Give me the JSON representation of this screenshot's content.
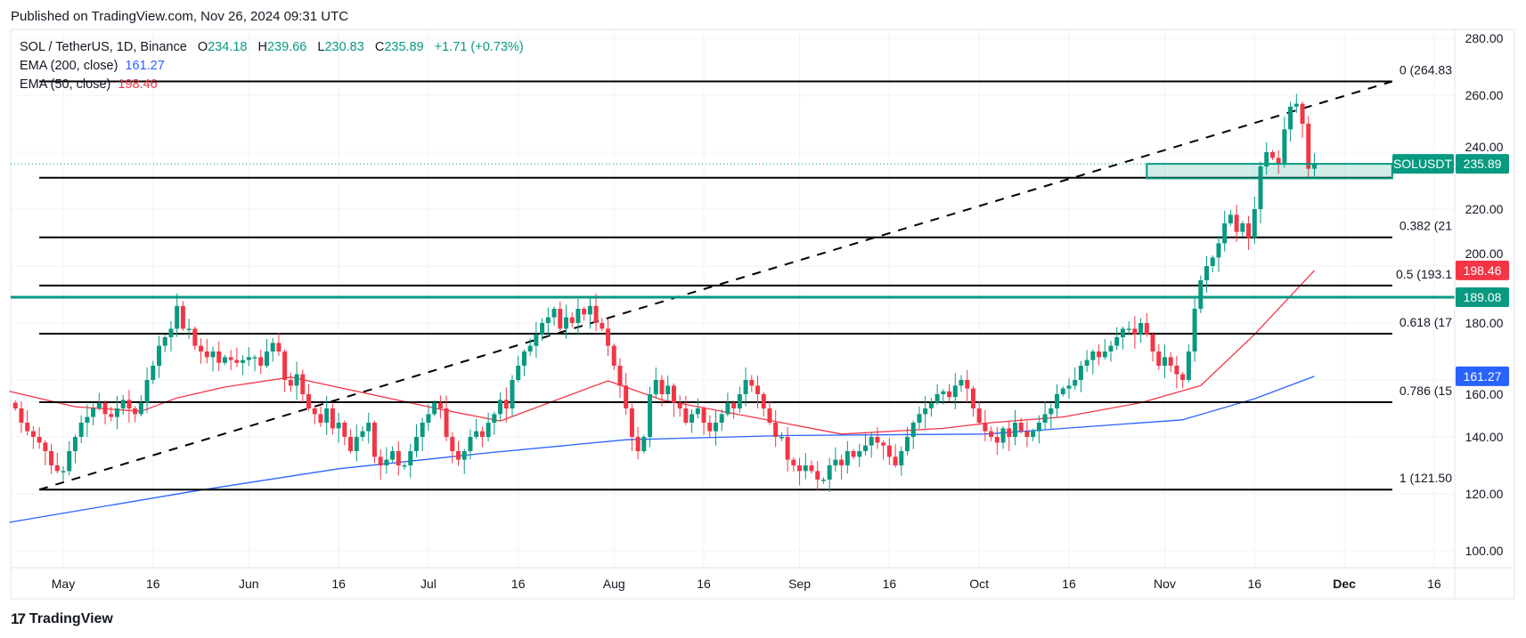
{
  "header": {
    "published": "Published on TradingView.com, Nov 26, 2024 09:31 UTC"
  },
  "legend": {
    "symbol": "SOL / TetherUS, 1D, Binance",
    "open_label": "O",
    "open": "234.18",
    "high_label": "H",
    "high": "239.66",
    "low_label": "L",
    "low": "230.83",
    "close_label": "C",
    "close": "235.89",
    "change": "+1.71 (+0.73%)",
    "ema200_label": "EMA (200, close)",
    "ema200_value": "161.27",
    "ema50_label": "EMA (50, close)",
    "ema50_value": "198.46"
  },
  "footer": {
    "logo_text": "TradingView"
  },
  "colors": {
    "up": "#089981",
    "down": "#f23645",
    "ema200": "#2962ff",
    "ema50": "#f23645",
    "fib": "#000000",
    "support": "#089981"
  },
  "chart_data": {
    "type": "candlestick",
    "interval": "1D",
    "x_start": "2024-04-23",
    "ylim": [
      95,
      285
    ],
    "y_ticks": [
      "100.00",
      "120.00",
      "140.00",
      "160.00",
      "180.00",
      "200.00",
      "220.00",
      "240.00",
      "260.00",
      "280.00"
    ],
    "y_tick_values": [
      100,
      120,
      140,
      160,
      180,
      200,
      220,
      240,
      260,
      280
    ],
    "x_ticks": [
      {
        "label": "May",
        "date": "2024-05-01",
        "bold": false
      },
      {
        "label": "16",
        "date": "2024-05-16"
      },
      {
        "label": "Jun",
        "date": "2024-06-01"
      },
      {
        "label": "16",
        "date": "2024-06-16"
      },
      {
        "label": "Jul",
        "date": "2024-07-01"
      },
      {
        "label": "16",
        "date": "2024-07-16"
      },
      {
        "label": "Aug",
        "date": "2024-08-01"
      },
      {
        "label": "16",
        "date": "2024-08-16"
      },
      {
        "label": "Sep",
        "date": "2024-09-01"
      },
      {
        "label": "16",
        "date": "2024-09-16"
      },
      {
        "label": "Oct",
        "date": "2024-10-01"
      },
      {
        "label": "16",
        "date": "2024-10-16"
      },
      {
        "label": "Nov",
        "date": "2024-11-01"
      },
      {
        "label": "16",
        "date": "2024-11-16"
      },
      {
        "label": "Dec",
        "date": "2024-12-01",
        "bold": true
      },
      {
        "label": "16",
        "date": "2024-12-16"
      }
    ],
    "grid": true,
    "closes": [
      150,
      145,
      142,
      140,
      138,
      135,
      130,
      128,
      128,
      135,
      140,
      145,
      147,
      150,
      152,
      148,
      147,
      150,
      153,
      150,
      148,
      152,
      160,
      165,
      172,
      175,
      178,
      186,
      178,
      178,
      172,
      170,
      168,
      170,
      166,
      168,
      167,
      166,
      167,
      168,
      168,
      165,
      170,
      173,
      170,
      160,
      158,
      162,
      155,
      150,
      148,
      145,
      150,
      143,
      145,
      140,
      135,
      140,
      142,
      145,
      133,
      130,
      132,
      135,
      130,
      130,
      135,
      140,
      145,
      148,
      152,
      150,
      140,
      135,
      132,
      135,
      140,
      142,
      140,
      145,
      148,
      153,
      150,
      160,
      165,
      170,
      172,
      176,
      180,
      182,
      185,
      178,
      182,
      180,
      185,
      183,
      186,
      180,
      178,
      172,
      165,
      158,
      150,
      140,
      135,
      140,
      155,
      160,
      155,
      158,
      152,
      150,
      145,
      148,
      150,
      145,
      142,
      145,
      148,
      152,
      150,
      155,
      160,
      158,
      155,
      150,
      145,
      140,
      140,
      132,
      130,
      128,
      130,
      128,
      125,
      125,
      130,
      132,
      130,
      135,
      133,
      135,
      137,
      140,
      138,
      137,
      133,
      130,
      135,
      140,
      145,
      148,
      150,
      152,
      155,
      156,
      154,
      158,
      160,
      157,
      150,
      145,
      142,
      140,
      138,
      143,
      140,
      145,
      142,
      140,
      142,
      145,
      148,
      150,
      155,
      157,
      158,
      160,
      165,
      167,
      170,
      168,
      170,
      172,
      175,
      178,
      178,
      176,
      180,
      176,
      170,
      165,
      168,
      165,
      162,
      160,
      170,
      185,
      195,
      200,
      203,
      208,
      215,
      218,
      212,
      215,
      210,
      220,
      235,
      240,
      238,
      236,
      248,
      256,
      257,
      250,
      234.18,
      235.89
    ],
    "last_candle": {
      "open": 234.18,
      "high": 239.66,
      "low": 230.83,
      "close": 235.89
    },
    "ema200": [
      {
        "date": "2024-04-22",
        "value": 110
      },
      {
        "date": "2024-05-23",
        "value": 121
      },
      {
        "date": "2024-06-16",
        "value": 128.8
      },
      {
        "date": "2024-07-11",
        "value": 134.4
      },
      {
        "date": "2024-08-03",
        "value": 139
      },
      {
        "date": "2024-08-30",
        "value": 140.5
      },
      {
        "date": "2024-10-02",
        "value": 141
      },
      {
        "date": "2024-11-04",
        "value": 146
      },
      {
        "date": "2024-11-16",
        "value": 153.4
      },
      {
        "date": "2024-11-26",
        "value": 161.27
      }
    ],
    "ema50": [
      {
        "date": "2024-04-22",
        "value": 156
      },
      {
        "date": "2024-05-03",
        "value": 150.6
      },
      {
        "date": "2024-05-14",
        "value": 149
      },
      {
        "date": "2024-05-20",
        "value": 153.7
      },
      {
        "date": "2024-05-28",
        "value": 157.5
      },
      {
        "date": "2024-06-08",
        "value": 161
      },
      {
        "date": "2024-07-03",
        "value": 149.7
      },
      {
        "date": "2024-07-13",
        "value": 145.6
      },
      {
        "date": "2024-07-31",
        "value": 159.7
      },
      {
        "date": "2024-08-09",
        "value": 153
      },
      {
        "date": "2024-08-29",
        "value": 145
      },
      {
        "date": "2024-09-08",
        "value": 141
      },
      {
        "date": "2024-09-25",
        "value": 143
      },
      {
        "date": "2024-10-03",
        "value": 145
      },
      {
        "date": "2024-10-15",
        "value": 147
      },
      {
        "date": "2024-10-28",
        "value": 152
      },
      {
        "date": "2024-11-07",
        "value": 158
      },
      {
        "date": "2024-11-16",
        "value": 176
      },
      {
        "date": "2024-11-26",
        "value": 198.46
      }
    ],
    "fib": {
      "start_date": "2024-04-27",
      "end_date": "2024-12-09",
      "levels": [
        {
          "price": 264.83,
          "label": "0 (264.83"
        },
        {
          "price": 231.0,
          "label": ""
        },
        {
          "price": 210.08,
          "label": "0.382 (21"
        },
        {
          "price": 193.17,
          "label": "0.5 (193.1"
        },
        {
          "price": 176.25,
          "label": "0.618 (17"
        },
        {
          "price": 152.17,
          "label": "0.786 (15"
        },
        {
          "price": 121.5,
          "label": "1 (121.50"
        }
      ],
      "trendline": {
        "from": {
          "date": "2024-04-27",
          "price": 121.5
        },
        "to": {
          "date": "2024-12-09",
          "price": 264.83
        }
      }
    },
    "support_line": {
      "price": 189.08,
      "label": "189.08"
    },
    "zone": {
      "start_date": "2024-10-29",
      "end_date": "2024-12-09",
      "low": 230.8,
      "high": 235.89
    },
    "price_badges": [
      {
        "name": "symbol",
        "text": "SOLUSDT",
        "value": "235.89",
        "price": 235.89,
        "color": "#089981"
      },
      {
        "name": "ema50",
        "value": "198.46",
        "price": 198.46,
        "color": "#f23645"
      },
      {
        "name": "ema200",
        "value": "161.27",
        "price": 161.27,
        "color": "#2962ff"
      }
    ]
  }
}
